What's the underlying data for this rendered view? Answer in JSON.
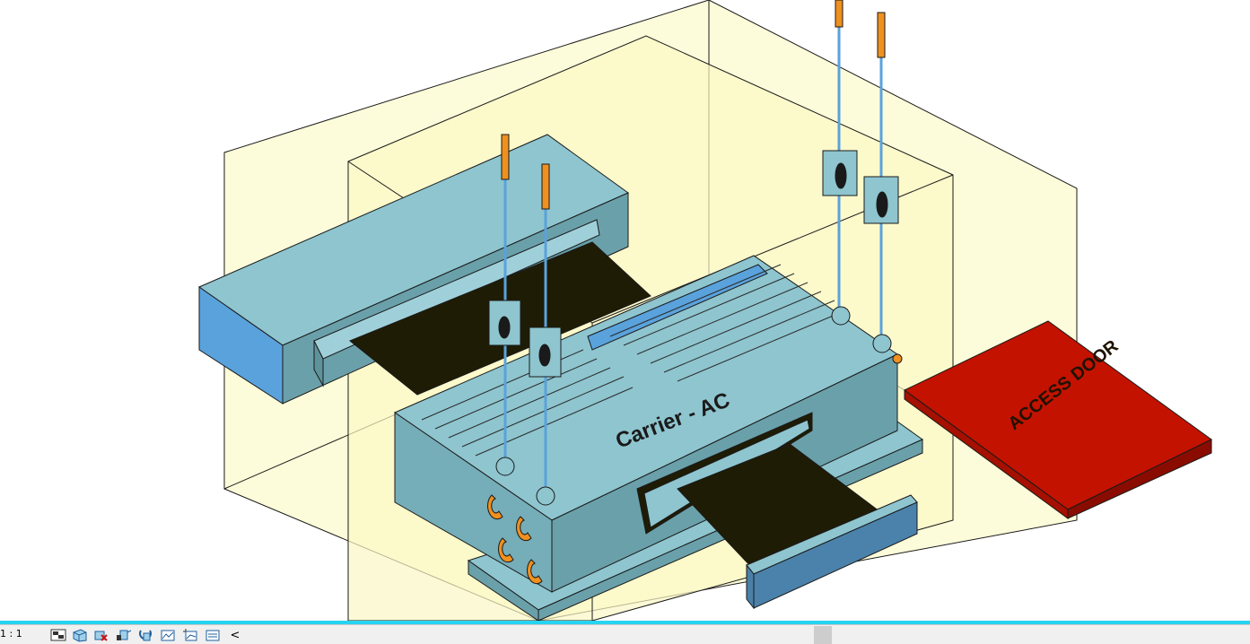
{
  "model_labels": {
    "unit_name": "Carrier - AC",
    "access_door": "ACCESS DOOR"
  },
  "view_control_bar": {
    "scale": "1 : 1",
    "tools": [
      {
        "name": "detail-level-icon"
      },
      {
        "name": "visual-style-icon"
      },
      {
        "name": "sun-path-icon"
      },
      {
        "name": "shadows-icon"
      },
      {
        "name": "show-rendering-dialog-icon"
      },
      {
        "name": "crop-view-icon"
      },
      {
        "name": "show-crop-region-icon"
      },
      {
        "name": "temporary-hide-isolate-icon"
      }
    ],
    "collapse_glyph": "<"
  },
  "colors": {
    "selection_border": "#27d3f0",
    "equipment": "#7bb4c0",
    "pipe": "#f0901e",
    "access_zone": "#c81400",
    "clearance_zone": "#fdfbd0"
  }
}
